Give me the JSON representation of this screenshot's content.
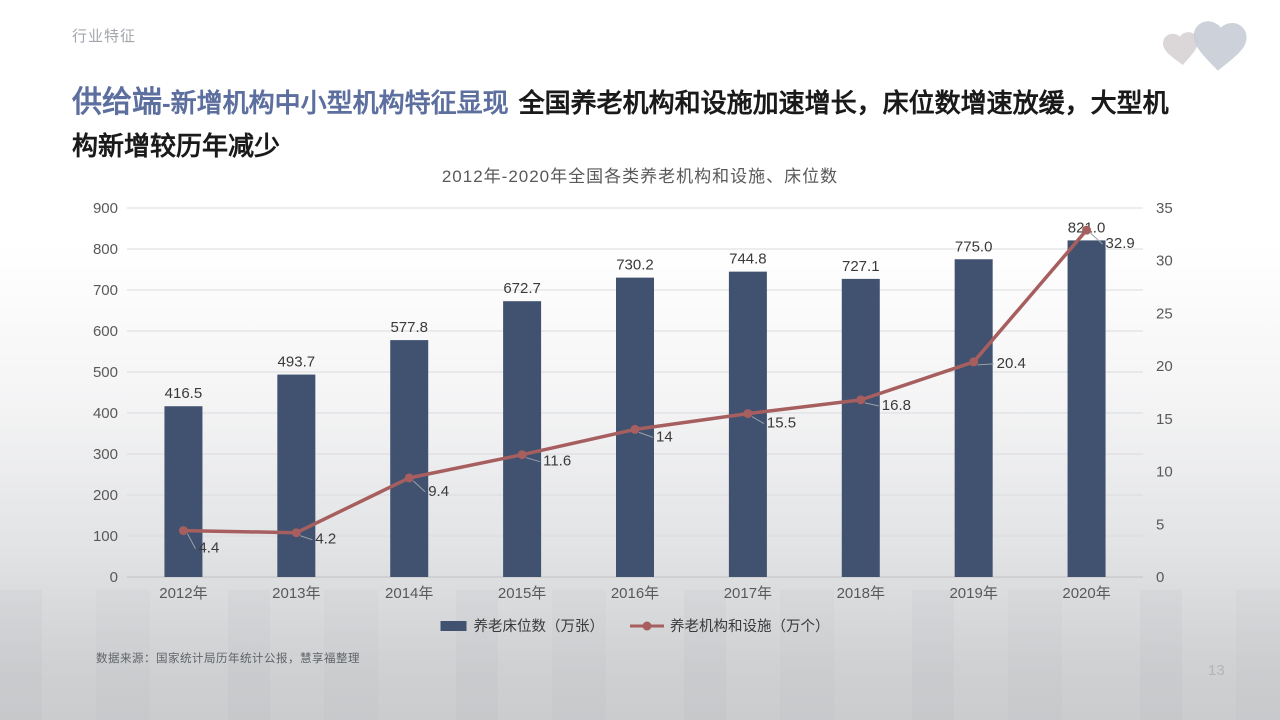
{
  "page": {
    "eyebrow": "行业特征",
    "title_highlight_large": "供给端",
    "title_highlight_rest": "-新增机构中小型机构特征显现",
    "title_main": "全国养老机构和设施加速增长，床位数增速放缓，大型机构新增较历年减少",
    "source_note": "数据来源：国家统计局历年统计公报，慧享福整理",
    "page_number": "13"
  },
  "colors": {
    "accent_blue": "#5c6f9e",
    "bar": "#415170",
    "line": "#a65f5e",
    "grid": "#dadbdc",
    "baseline": "#c2c3c5",
    "axis_text": "#595959",
    "label_text": "#3a3a3a",
    "leader": "#9aa0a6",
    "logo_heart_small": "#d9d4d5",
    "logo_heart_large": "#c9ced7"
  },
  "chart_data": {
    "type": "bar+line combo",
    "title": "2012年-2020年全国各类养老机构和设施、床位数",
    "categories": [
      "2012年",
      "2013年",
      "2014年",
      "2015年",
      "2016年",
      "2017年",
      "2018年",
      "2019年",
      "2020年"
    ],
    "series": [
      {
        "name": "养老床位数（万张）",
        "type": "bar",
        "axis": "left",
        "values": [
          416.5,
          493.7,
          577.8,
          672.7,
          730.2,
          744.8,
          727.1,
          775.0,
          821.0
        ],
        "labels": [
          "416.5",
          "493.7",
          "577.8",
          "672.7",
          "730.2",
          "744.8",
          "727.1",
          "775.0",
          "821.0"
        ]
      },
      {
        "name": "养老机构和设施（万个）",
        "type": "line",
        "axis": "right",
        "values": [
          4.4,
          4.2,
          9.4,
          11.6,
          14,
          15.5,
          16.8,
          20.4,
          32.9
        ],
        "labels": [
          "4.4",
          "4.2",
          "9.4",
          "11.6",
          "14",
          "15.5",
          "16.8",
          "20.4",
          "32.9"
        ],
        "label_offsets": [
          [
            12,
            17
          ],
          [
            16,
            6
          ],
          [
            16,
            13
          ],
          [
            18,
            6
          ],
          [
            18,
            7
          ],
          [
            16,
            9
          ],
          [
            18,
            5
          ],
          [
            20,
            1
          ],
          [
            16,
            13
          ]
        ]
      }
    ],
    "left_axis": {
      "min": 0,
      "max": 900,
      "step": 100
    },
    "right_axis": {
      "min": 0,
      "max": 35,
      "step": 5
    },
    "grid": true,
    "legend_position": "bottom"
  }
}
